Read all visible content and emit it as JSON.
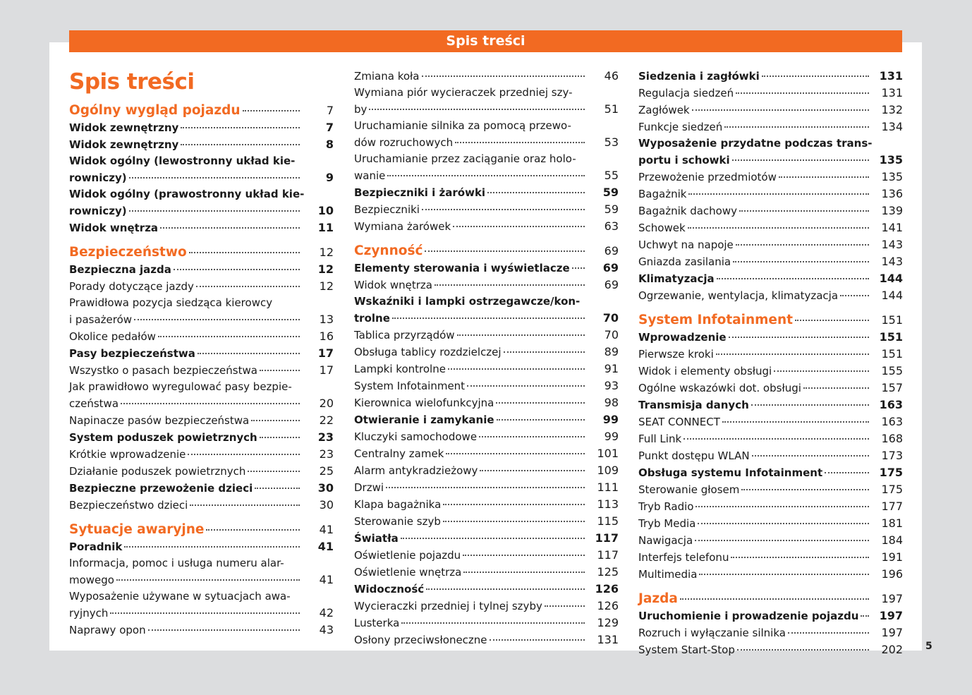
{
  "header": {
    "title": "Spis treści"
  },
  "page_number": "5",
  "colors": {
    "accent": "#f26a22",
    "background": "#dcdddf"
  },
  "title": "Spis treści",
  "columns": [
    [
      {
        "k": "h",
        "t": "Ogólny wygląd pojazdu",
        "p": "7"
      },
      {
        "k": "b",
        "t": "Widok zewnętrzny",
        "p": "7"
      },
      {
        "k": "b",
        "t": "Widok zewnętrzny",
        "p": "8"
      },
      {
        "k": "b",
        "pre": "Widok ogólny (lewostronny układ kie-",
        "t": "rowniczy)",
        "p": "9"
      },
      {
        "k": "b",
        "pre": "Widok ogólny (prawostronny układ kie-",
        "t": "rowniczy)",
        "p": "10"
      },
      {
        "k": "b",
        "t": "Widok wnętrza",
        "p": "11"
      },
      {
        "k": "h",
        "t": "Bezpieczeństwo",
        "p": "12"
      },
      {
        "k": "b",
        "t": "Bezpieczna jazda",
        "p": "12"
      },
      {
        "k": "n",
        "t": "Porady dotyczące jazdy",
        "p": "12"
      },
      {
        "k": "n",
        "pre": "Prawidłowa pozycja siedząca kierowcy",
        "t": "i pasażerów",
        "p": "13"
      },
      {
        "k": "n",
        "t": "Okolice pedałów",
        "p": "16"
      },
      {
        "k": "b",
        "t": "Pasy bezpieczeństwa",
        "p": "17"
      },
      {
        "k": "n",
        "t": "Wszystko o pasach bezpieczeństwa",
        "p": "17"
      },
      {
        "k": "n",
        "pre": "Jak prawidłowo wyregulować pasy bezpie-",
        "t": "czeństwa",
        "p": "20"
      },
      {
        "k": "n",
        "t": "Napinacze pasów bezpieczeństwa",
        "p": "22"
      },
      {
        "k": "b",
        "t": "System poduszek powietrznych",
        "p": "23"
      },
      {
        "k": "n",
        "t": "Krótkie wprowadzenie",
        "p": "23"
      },
      {
        "k": "n",
        "t": "Działanie poduszek powietrznych",
        "p": "25"
      },
      {
        "k": "b",
        "t": "Bezpieczne przewożenie dzieci",
        "p": "30"
      },
      {
        "k": "n",
        "t": "Bezpieczeństwo dzieci",
        "p": "30"
      },
      {
        "k": "h",
        "t": "Sytuacje awaryjne",
        "p": "41"
      },
      {
        "k": "b",
        "t": "Poradnik",
        "p": "41"
      },
      {
        "k": "n",
        "pre": "Informacja, pomoc i usługa numeru alar-",
        "t": "mowego",
        "p": "41"
      },
      {
        "k": "n",
        "pre": "Wyposażenie używane w sytuacjach awa-",
        "t": "ryjnych",
        "p": "42"
      },
      {
        "k": "n",
        "t": "Naprawy opon",
        "p": "43"
      }
    ],
    [
      {
        "k": "n",
        "t": "Zmiana koła",
        "p": "46"
      },
      {
        "k": "n",
        "pre": "Wymiana piór wycieraczek przedniej szy-",
        "t": "by",
        "p": "51"
      },
      {
        "k": "n",
        "pre": "Uruchamianie silnika za pomocą przewo-",
        "t": "dów rozruchowych",
        "p": "53"
      },
      {
        "k": "n",
        "pre": "Uruchamianie przez zaciąganie oraz holo-",
        "t": "wanie",
        "p": "55"
      },
      {
        "k": "b",
        "t": "Bezpieczniki i żarówki",
        "p": "59"
      },
      {
        "k": "n",
        "t": "Bezpieczniki",
        "p": "59"
      },
      {
        "k": "n",
        "t": "Wymiana żarówek",
        "p": "63"
      },
      {
        "k": "h",
        "t": "Czynność",
        "p": "69"
      },
      {
        "k": "b",
        "t": "Elementy sterowania i wyświetlacze",
        "p": "69"
      },
      {
        "k": "n",
        "t": "Widok wnętrza",
        "p": "69"
      },
      {
        "k": "b",
        "pre": "Wskaźniki i lampki ostrzegawcze/kon-",
        "t": "trolne",
        "p": "70"
      },
      {
        "k": "n",
        "t": "Tablica przyrządów",
        "p": "70"
      },
      {
        "k": "n",
        "t": "Obsługa tablicy rozdzielczej",
        "p": "89"
      },
      {
        "k": "n",
        "t": "Lampki kontrolne",
        "p": "91"
      },
      {
        "k": "n",
        "t": "System Infotainment",
        "p": "93"
      },
      {
        "k": "n",
        "t": "Kierownica wielofunkcyjna",
        "p": "98"
      },
      {
        "k": "b",
        "t": "Otwieranie i zamykanie",
        "p": "99"
      },
      {
        "k": "n",
        "t": "Kluczyki samochodowe",
        "p": "99"
      },
      {
        "k": "n",
        "t": "Centralny zamek",
        "p": "101"
      },
      {
        "k": "n",
        "t": "Alarm antykradzieżowy",
        "p": "109"
      },
      {
        "k": "n",
        "t": "Drzwi",
        "p": "111"
      },
      {
        "k": "n",
        "t": "Klapa bagażnika",
        "p": "113"
      },
      {
        "k": "n",
        "t": "Sterowanie szyb",
        "p": "115"
      },
      {
        "k": "b",
        "t": "Światła",
        "p": "117"
      },
      {
        "k": "n",
        "t": "Oświetlenie pojazdu",
        "p": "117"
      },
      {
        "k": "n",
        "t": "Oświetlenie wnętrza",
        "p": "125"
      },
      {
        "k": "b",
        "t": "Widoczność",
        "p": "126"
      },
      {
        "k": "n",
        "t": "Wycieraczki przedniej i tylnej szyby",
        "p": "126"
      },
      {
        "k": "n",
        "t": "Lusterka",
        "p": "129"
      },
      {
        "k": "n",
        "t": "Osłony przeciwsłoneczne",
        "p": "131"
      }
    ],
    [
      {
        "k": "b",
        "t": "Siedzenia i zagłówki",
        "p": "131"
      },
      {
        "k": "n",
        "t": "Regulacja siedzeń",
        "p": "131"
      },
      {
        "k": "n",
        "t": "Zagłówek",
        "p": "132"
      },
      {
        "k": "n",
        "t": "Funkcje siedzeń",
        "p": "134"
      },
      {
        "k": "b",
        "pre": "Wyposażenie przydatne podczas trans-",
        "t": "portu i schowki",
        "p": "135"
      },
      {
        "k": "n",
        "t": "Przewożenie przedmiotów",
        "p": "135"
      },
      {
        "k": "n",
        "t": "Bagażnik",
        "p": "136"
      },
      {
        "k": "n",
        "t": "Bagażnik dachowy",
        "p": "139"
      },
      {
        "k": "n",
        "t": "Schowek",
        "p": "141"
      },
      {
        "k": "n",
        "t": "Uchwyt na napoje",
        "p": "143"
      },
      {
        "k": "n",
        "t": "Gniazda zasilania",
        "p": "143"
      },
      {
        "k": "b",
        "t": "Klimatyzacja",
        "p": "144"
      },
      {
        "k": "n",
        "t": "Ogrzewanie, wentylacja, klimatyzacja",
        "p": "144"
      },
      {
        "k": "h",
        "t": "System Infotainment",
        "p": "151"
      },
      {
        "k": "b",
        "t": "Wprowadzenie",
        "p": "151"
      },
      {
        "k": "n",
        "t": "Pierwsze kroki",
        "p": "151"
      },
      {
        "k": "n",
        "t": "Widok i elementy obsługi",
        "p": "155"
      },
      {
        "k": "n",
        "t": "Ogólne wskazówki dot. obsługi",
        "p": "157"
      },
      {
        "k": "b",
        "t": "Transmisja danych",
        "p": "163"
      },
      {
        "k": "n",
        "t": "SEAT CONNECT",
        "p": "163"
      },
      {
        "k": "n",
        "t": "Full Link",
        "p": "168"
      },
      {
        "k": "n",
        "t": "Punkt dostępu WLAN",
        "p": "173"
      },
      {
        "k": "b",
        "t": "Obsługa systemu Infotainment",
        "p": "175"
      },
      {
        "k": "n",
        "t": "Sterowanie głosem",
        "p": "175"
      },
      {
        "k": "n",
        "t": "Tryb Radio",
        "p": "177"
      },
      {
        "k": "n",
        "t": "Tryb Media",
        "p": "181"
      },
      {
        "k": "n",
        "t": "Nawigacja",
        "p": "184"
      },
      {
        "k": "n",
        "t": "Interfejs telefonu",
        "p": "191"
      },
      {
        "k": "n",
        "t": "Multimedia",
        "p": "196"
      },
      {
        "k": "h",
        "t": "Jazda",
        "p": "197"
      },
      {
        "k": "b",
        "t": "Uruchomienie i prowadzenie pojazdu",
        "p": "197"
      },
      {
        "k": "n",
        "t": "Rozruch i wyłączanie silnika",
        "p": "197"
      },
      {
        "k": "n",
        "t": "System Start-Stop",
        "p": "202"
      }
    ]
  ]
}
